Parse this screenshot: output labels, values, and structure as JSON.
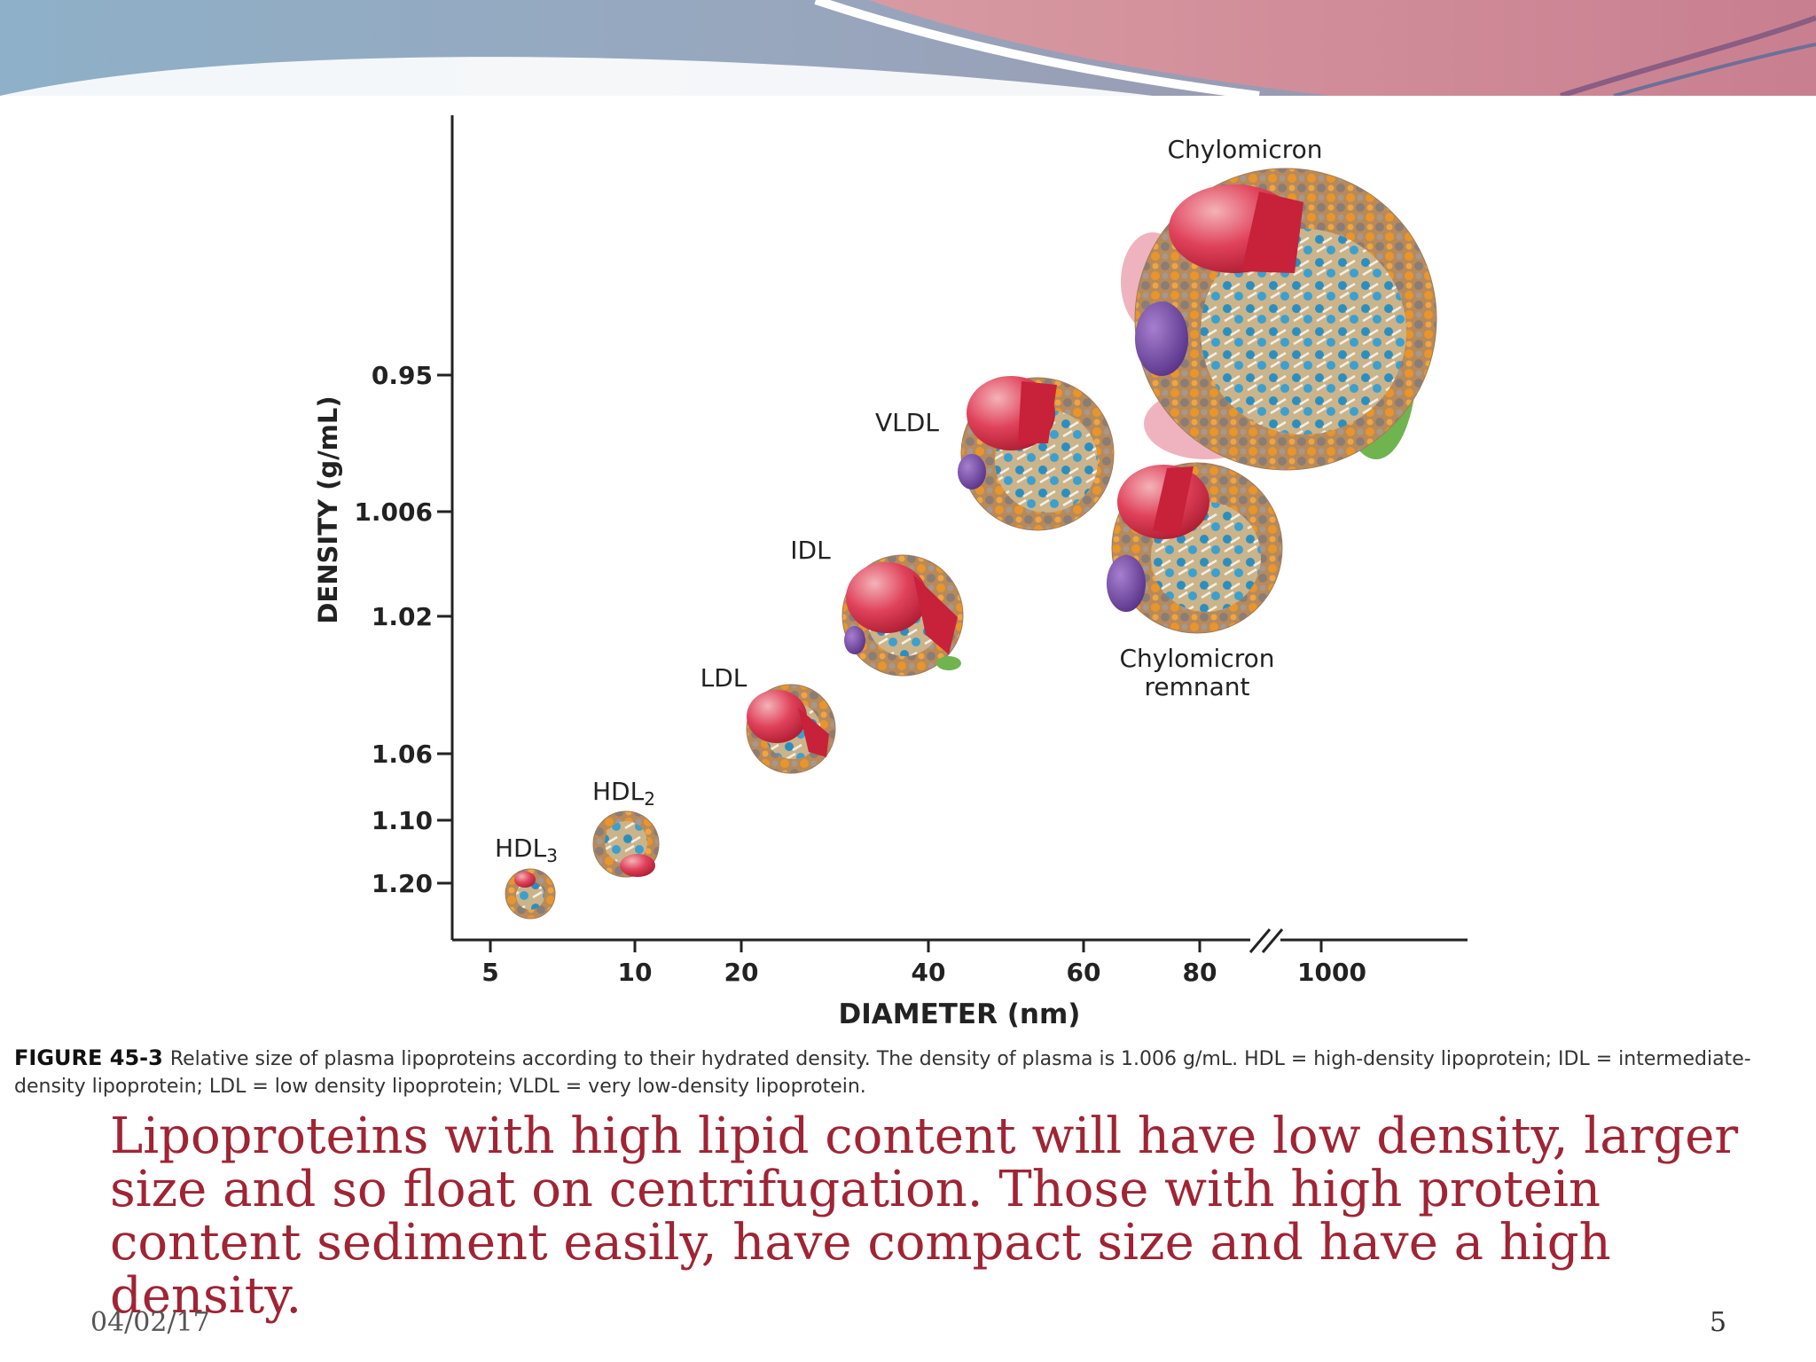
{
  "diagram": {
    "x_axis_title": "DIAMETER (nm)",
    "y_axis_title": "DENSITY (g/mL)",
    "x_ticks": [
      "5",
      "10",
      "20",
      "40",
      "60",
      "80",
      "1000"
    ],
    "y_ticks": [
      "0.95",
      "1.006",
      "1.02",
      "1.06",
      "1.10",
      "1.20"
    ],
    "particles": [
      {
        "label": "HDL",
        "subscript": "3"
      },
      {
        "label": "HDL",
        "subscript": "2"
      },
      {
        "label": "LDL"
      },
      {
        "label": "IDL"
      },
      {
        "label": "VLDL"
      },
      {
        "label": "Chylomicron"
      },
      {
        "label_line1": "Chylomicron",
        "label_line2": "remnant"
      }
    ],
    "colors": {
      "protein_red": "#c8213a",
      "shell_orange": "#e8952c",
      "shell_gray": "#8a7d76",
      "core_blue": "#2a8fc0",
      "apo_purple": "#6b3c9a",
      "apo_green": "#6fb44e",
      "apo_pink": "#efb3bf"
    }
  },
  "caption": {
    "figure_label": "FIGURE 45-3",
    "text": "Relative size of plasma lipoproteins according to their hydrated density. The density of plasma is 1.006 g/mL. HDL = high-density lipoprotein; IDL = intermediate-density lipoprotein; LDL = low density lipoprotein; VLDL = very low-density lipoprotein."
  },
  "body_text": "Lipoproteins with high lipid content will have low density, larger size and so float on centrifugation. Those with high protein content sediment easily, have compact size and have a high density.",
  "footer": {
    "date": "04/02/17",
    "page": "5"
  }
}
